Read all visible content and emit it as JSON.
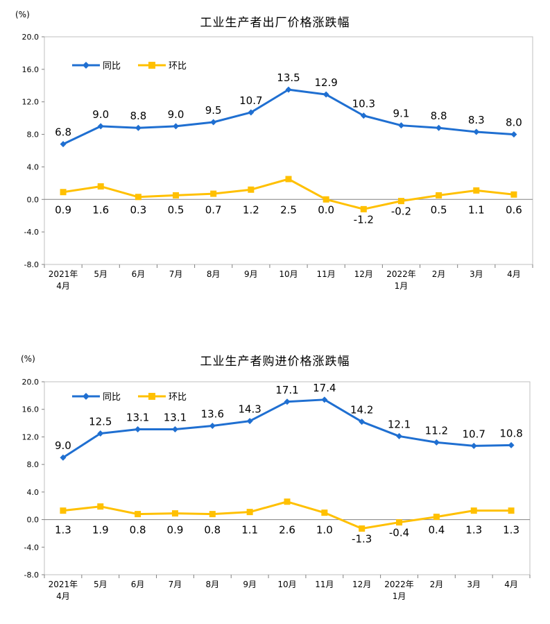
{
  "chart_data": [
    {
      "type": "line",
      "title": "工业生产者出厂价格涨跌幅",
      "unit": "(%)",
      "categories": [
        {
          "line1": "2021年",
          "line2": "4月"
        },
        {
          "line1": "5月",
          "line2": ""
        },
        {
          "line1": "6月",
          "line2": ""
        },
        {
          "line1": "7月",
          "line2": ""
        },
        {
          "line1": "8月",
          "line2": ""
        },
        {
          "line1": "9月",
          "line2": ""
        },
        {
          "line1": "10月",
          "line2": ""
        },
        {
          "line1": "11月",
          "line2": ""
        },
        {
          "line1": "12月",
          "line2": ""
        },
        {
          "line1": "2022年",
          "line2": "1月"
        },
        {
          "line1": "2月",
          "line2": ""
        },
        {
          "line1": "3月",
          "line2": ""
        },
        {
          "line1": "4月",
          "line2": ""
        }
      ],
      "yticks": [
        "20.0",
        "16.0",
        "12.0",
        "8.0",
        "4.0",
        "0.0",
        "-4.0",
        "-8.0"
      ],
      "ylim": [
        -8,
        20
      ],
      "series": [
        {
          "name": "同比",
          "color": "#1F6FD1",
          "marker": "diamond",
          "values": [
            6.8,
            9.0,
            8.8,
            9.0,
            9.5,
            10.7,
            13.5,
            12.9,
            10.3,
            9.1,
            8.8,
            8.3,
            8.0
          ],
          "labels": [
            "6.8",
            "9.0",
            "8.8",
            "9.0",
            "9.5",
            "10.7",
            "13.5",
            "12.9",
            "10.3",
            "9.1",
            "8.8",
            "8.3",
            "8.0"
          ]
        },
        {
          "name": "环比",
          "color": "#FFC000",
          "marker": "square",
          "values": [
            0.9,
            1.6,
            0.3,
            0.5,
            0.7,
            1.2,
            2.5,
            0.0,
            -1.2,
            -0.2,
            0.5,
            1.1,
            0.6
          ],
          "labels": [
            "0.9",
            "1.6",
            "0.3",
            "0.5",
            "0.7",
            "1.2",
            "2.5",
            "0.0",
            "-1.2",
            "-0.2",
            "0.5",
            "1.1",
            "0.6"
          ]
        }
      ],
      "legend_position": "top-left"
    },
    {
      "type": "line",
      "title": "工业生产者购进价格涨跌幅",
      "unit": "(%)",
      "categories": [
        {
          "line1": "2021年",
          "line2": "4月"
        },
        {
          "line1": "5月",
          "line2": ""
        },
        {
          "line1": "6月",
          "line2": ""
        },
        {
          "line1": "7月",
          "line2": ""
        },
        {
          "line1": "8月",
          "line2": ""
        },
        {
          "line1": "9月",
          "line2": ""
        },
        {
          "line1": "10月",
          "line2": ""
        },
        {
          "line1": "11月",
          "line2": ""
        },
        {
          "line1": "12月",
          "line2": ""
        },
        {
          "line1": "2022年",
          "line2": "1月"
        },
        {
          "line1": "2月",
          "line2": ""
        },
        {
          "line1": "3月",
          "line2": ""
        },
        {
          "line1": "4月",
          "line2": ""
        }
      ],
      "yticks": [
        "20.0",
        "16.0",
        "12.0",
        "8.0",
        "4.0",
        "0.0",
        "-4.0",
        "-8.0"
      ],
      "ylim": [
        -8,
        20
      ],
      "series": [
        {
          "name": "同比",
          "color": "#1F6FD1",
          "marker": "diamond",
          "values": [
            9.0,
            12.5,
            13.1,
            13.1,
            13.6,
            14.3,
            17.1,
            17.4,
            14.2,
            12.1,
            11.2,
            10.7,
            10.8
          ],
          "labels": [
            "9.0",
            "12.5",
            "13.1",
            "13.1",
            "13.6",
            "14.3",
            "17.1",
            "17.4",
            "14.2",
            "12.1",
            "11.2",
            "10.7",
            "10.8"
          ]
        },
        {
          "name": "环比",
          "color": "#FFC000",
          "marker": "square",
          "values": [
            1.3,
            1.9,
            0.8,
            0.9,
            0.8,
            1.1,
            2.6,
            1.0,
            -1.3,
            -0.4,
            0.4,
            1.3,
            1.3
          ],
          "labels": [
            "1.3",
            "1.9",
            "0.8",
            "0.9",
            "0.8",
            "1.1",
            "2.6",
            "1.0",
            "-1.3",
            "-0.4",
            "0.4",
            "1.3",
            "1.3"
          ]
        }
      ],
      "legend_position": "top-left"
    }
  ]
}
